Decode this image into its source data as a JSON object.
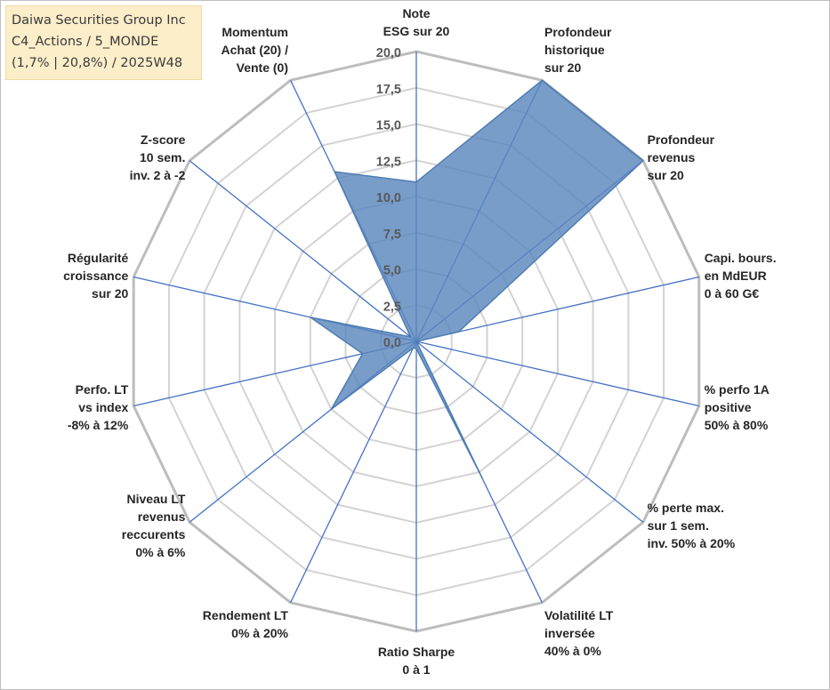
{
  "title_box": {
    "line1": "Daiwa Securities Group Inc",
    "line2": "C4_Actions / 5_MONDE",
    "line3": "(1,7% | 20,8%) / 2025W48"
  },
  "chart_data": {
    "type": "radar",
    "rmin": 0,
    "rmax": 20,
    "ticks": [
      "0,0",
      "2,5",
      "5,0",
      "7,5",
      "10,0",
      "12,5",
      "15,0",
      "17,5",
      "20,0"
    ],
    "tick_values": [
      0,
      2.5,
      5,
      7.5,
      10,
      12.5,
      15,
      17.5,
      20
    ],
    "grid": true,
    "series": [
      {
        "name": "Daiwa Securities Group Inc",
        "color": "#4f7db3",
        "fill": "#5b88bd",
        "values": [
          11,
          20,
          20,
          3,
          0,
          0,
          10.5,
          0.5,
          0.5,
          7.5,
          3.8,
          7.5,
          0.5,
          13
        ]
      }
    ],
    "axes": [
      [
        "Note",
        "ESG sur 20"
      ],
      [
        "Profondeur",
        "historique",
        "sur 20"
      ],
      [
        "Profondeur",
        "revenus",
        "sur 20"
      ],
      [
        "Capi. bours.",
        "en MdEUR",
        "0 à 60 G€"
      ],
      [
        "% perfo 1A",
        "positive",
        "50% à 80%"
      ],
      [
        "% perte max.",
        "sur 1 sem.",
        "inv. 50% à 20%"
      ],
      [
        "Volatilité LT",
        "inversée",
        "40% à 0%"
      ],
      [
        "Ratio Sharpe",
        "0 à 1"
      ],
      [
        "Rendement LT",
        "0% à 20%"
      ],
      [
        "Niveau LT",
        "revenus",
        "reccurents",
        "0% à 6%"
      ],
      [
        "Perfo. LT",
        "vs index",
        "-8% à 12%"
      ],
      [
        "Régularité",
        "croissance",
        "sur 20"
      ],
      [
        "Z-score",
        "10 sem.",
        "inv. 2 à -2"
      ],
      [
        "Momentum",
        "Achat (20) /",
        "Vente (0)"
      ]
    ]
  }
}
